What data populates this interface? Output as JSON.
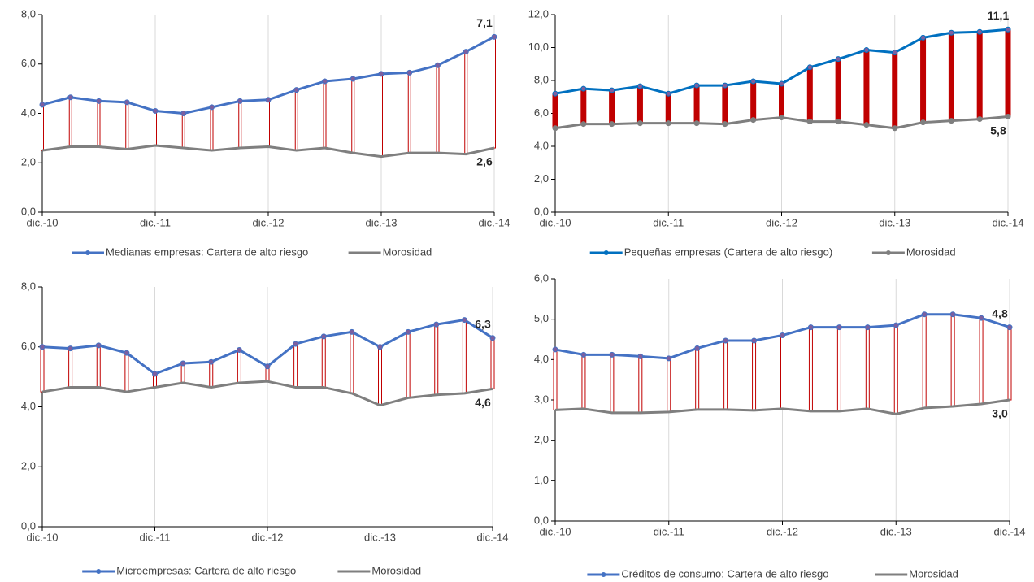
{
  "chart_data": [
    {
      "type": "line",
      "categories": [
        "dic.-10",
        null,
        null,
        null,
        "dic.-11",
        null,
        null,
        null,
        "dic.-12",
        null,
        null,
        null,
        "dic.-13",
        null,
        null,
        null,
        "dic.-14"
      ],
      "series": [
        {
          "name": "Medianas empresas: Cartera de alto riesgo",
          "color": "#4472c4",
          "markers": true,
          "values": [
            4.35,
            4.65,
            4.5,
            4.45,
            4.1,
            4.0,
            4.25,
            4.5,
            4.55,
            4.95,
            5.3,
            5.4,
            5.6,
            5.65,
            5.95,
            6.5,
            7.1
          ],
          "value_labels": [
            null,
            null,
            null,
            null,
            null,
            null,
            null,
            null,
            null,
            null,
            null,
            null,
            null,
            null,
            null,
            null,
            "7,1"
          ]
        },
        {
          "name": "Morosidad",
          "color": "#7f7f7f",
          "markers": false,
          "values": [
            2.5,
            2.65,
            2.65,
            2.55,
            2.7,
            2.6,
            2.5,
            2.6,
            2.65,
            2.5,
            2.6,
            2.4,
            2.25,
            2.4,
            2.4,
            2.35,
            2.6
          ],
          "value_labels": [
            null,
            null,
            null,
            null,
            null,
            null,
            null,
            null,
            null,
            null,
            null,
            null,
            null,
            null,
            null,
            null,
            "2,6"
          ]
        }
      ],
      "hi_lo_bars": {
        "color": "#c00000",
        "filled": false
      },
      "ylim": [
        0,
        8
      ],
      "yticks": [
        {
          "value": 0,
          "label": "0,0"
        },
        {
          "value": 2,
          "label": "2,0"
        },
        {
          "value": 4,
          "label": "4,0"
        },
        {
          "value": 6,
          "label": "6,0"
        },
        {
          "value": 8,
          "label": "8,0"
        }
      ],
      "grid": true
    },
    {
      "type": "line",
      "categories": [
        "dic.-10",
        null,
        null,
        null,
        "dic.-11",
        null,
        null,
        null,
        "dic.-12",
        null,
        null,
        null,
        "dic.-13",
        null,
        null,
        null,
        "dic.-14"
      ],
      "series": [
        {
          "name": "Pequeñas empresas (Cartera de alto riesgo)",
          "color": "#0070c0",
          "markers": true,
          "values": [
            7.2,
            7.5,
            7.4,
            7.65,
            7.2,
            7.7,
            7.7,
            7.95,
            7.8,
            8.8,
            9.3,
            9.85,
            9.7,
            10.6,
            10.9,
            10.95,
            11.1
          ],
          "value_labels": [
            null,
            null,
            null,
            null,
            null,
            null,
            null,
            null,
            null,
            null,
            null,
            null,
            null,
            null,
            null,
            null,
            "11,1"
          ]
        },
        {
          "name": "Morosidad",
          "color": "#7f7f7f",
          "markers": true,
          "values": [
            5.1,
            5.35,
            5.35,
            5.4,
            5.4,
            5.4,
            5.35,
            5.6,
            5.75,
            5.5,
            5.5,
            5.3,
            5.1,
            5.45,
            5.55,
            5.65,
            5.8
          ],
          "value_labels": [
            null,
            null,
            null,
            null,
            null,
            null,
            null,
            null,
            null,
            null,
            null,
            null,
            null,
            null,
            null,
            null,
            "5,8"
          ]
        }
      ],
      "hi_lo_bars": {
        "color": "#c00000",
        "filled": true
      },
      "ylim": [
        0,
        12
      ],
      "yticks": [
        {
          "value": 0,
          "label": "0,0"
        },
        {
          "value": 2,
          "label": "2,0"
        },
        {
          "value": 4,
          "label": "4,0"
        },
        {
          "value": 6,
          "label": "6,0"
        },
        {
          "value": 8,
          "label": "8,0"
        },
        {
          "value": 10,
          "label": "10,0"
        },
        {
          "value": 12,
          "label": "12,0"
        }
      ],
      "grid": true
    },
    {
      "type": "line",
      "categories": [
        "dic.-10",
        null,
        null,
        null,
        "dic.-11",
        null,
        null,
        null,
        "dic.-12",
        null,
        null,
        null,
        "dic.-13",
        null,
        null,
        null,
        "dic.-14"
      ],
      "series": [
        {
          "name": "Microempresas: Cartera de alto riesgo",
          "color": "#4472c4",
          "markers": true,
          "values": [
            6.0,
            5.95,
            6.05,
            5.8,
            5.1,
            5.45,
            5.5,
            5.9,
            5.35,
            6.1,
            6.35,
            6.5,
            6.0,
            6.5,
            6.75,
            6.9,
            6.3
          ],
          "value_labels": [
            null,
            null,
            null,
            null,
            null,
            null,
            null,
            null,
            null,
            null,
            null,
            null,
            null,
            null,
            null,
            null,
            "6,3"
          ]
        },
        {
          "name": "Morosidad",
          "color": "#7f7f7f",
          "markers": false,
          "values": [
            4.5,
            4.65,
            4.65,
            4.5,
            4.65,
            4.8,
            4.65,
            4.8,
            4.85,
            4.65,
            4.65,
            4.45,
            4.05,
            4.3,
            4.4,
            4.45,
            4.6
          ],
          "value_labels": [
            null,
            null,
            null,
            null,
            null,
            null,
            null,
            null,
            null,
            null,
            null,
            null,
            null,
            null,
            null,
            null,
            "4,6"
          ]
        }
      ],
      "hi_lo_bars": {
        "color": "#c00000",
        "filled": false
      },
      "ylim": [
        0,
        8
      ],
      "yticks": [
        {
          "value": 0,
          "label": "0,0"
        },
        {
          "value": 2,
          "label": "2,0"
        },
        {
          "value": 4,
          "label": "4,0"
        },
        {
          "value": 6,
          "label": "6,0"
        },
        {
          "value": 8,
          "label": "8,0"
        }
      ],
      "grid": true
    },
    {
      "type": "line",
      "categories": [
        "dic.-10",
        null,
        null,
        null,
        "dic.-11",
        null,
        null,
        null,
        "dic.-12",
        null,
        null,
        null,
        "dic.-13",
        null,
        null,
        null,
        "dic.-14"
      ],
      "series": [
        {
          "name": "Créditos de consumo: Cartera de alto riesgo",
          "color": "#4472c4",
          "markers": true,
          "values": [
            4.25,
            4.12,
            4.12,
            4.08,
            4.03,
            4.28,
            4.47,
            4.47,
            4.6,
            4.8,
            4.8,
            4.8,
            4.85,
            5.12,
            5.12,
            5.03,
            4.8
          ],
          "value_labels": [
            null,
            null,
            null,
            null,
            null,
            null,
            null,
            null,
            null,
            null,
            null,
            null,
            null,
            null,
            null,
            null,
            "4,8"
          ]
        },
        {
          "name": "Morosidad",
          "color": "#7f7f7f",
          "markers": false,
          "values": [
            2.75,
            2.78,
            2.68,
            2.68,
            2.7,
            2.76,
            2.76,
            2.74,
            2.78,
            2.72,
            2.72,
            2.78,
            2.65,
            2.8,
            2.84,
            2.9,
            3.0
          ],
          "value_labels": [
            null,
            null,
            null,
            null,
            null,
            null,
            null,
            null,
            null,
            null,
            null,
            null,
            null,
            null,
            null,
            null,
            "3,0"
          ]
        }
      ],
      "hi_lo_bars": {
        "color": "#c00000",
        "filled": false
      },
      "ylim": [
        0,
        6
      ],
      "yticks": [
        {
          "value": 0,
          "label": "0,0"
        },
        {
          "value": 1,
          "label": "1,0"
        },
        {
          "value": 2,
          "label": "2,0"
        },
        {
          "value": 3,
          "label": "3,0"
        },
        {
          "value": 4,
          "label": "4,0"
        },
        {
          "value": 5,
          "label": "5,0"
        },
        {
          "value": 6,
          "label": "6,0"
        }
      ],
      "grid": true
    }
  ]
}
